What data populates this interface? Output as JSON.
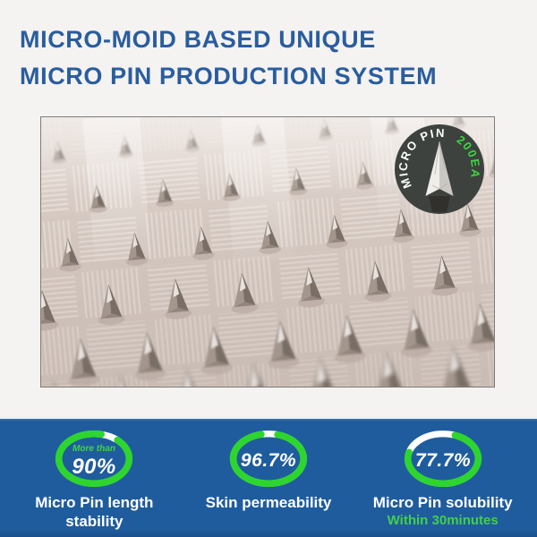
{
  "header": {
    "title_line1": "MICRO-MOID BASED UNIQUE",
    "title_line2": "MICRO PIN PRODUCTION SYSTEM"
  },
  "badge": {
    "text_white": "MICRO PIN",
    "text_green": "200EA"
  },
  "stats": {
    "items": [
      {
        "qualifier": "More than",
        "value": "90%",
        "percent": 90,
        "label": "Micro Pin length stability",
        "sublabel": ""
      },
      {
        "qualifier": "",
        "value": "96.7%",
        "percent": 96.7,
        "label": "Skin permeability",
        "sublabel": ""
      },
      {
        "qualifier": "",
        "value": "77.7%",
        "percent": 77.7,
        "label": "Micro Pin solubility",
        "sublabel": "Within 30minutes"
      }
    ]
  },
  "colors": {
    "title_blue": "#2a5d9e",
    "band_blue": "#1f5c9d",
    "ring_green": "#2ed52e",
    "accent_green_text": "#41cf4d",
    "badge_background": "#3d423e",
    "page_background": "#f4f3f1"
  }
}
